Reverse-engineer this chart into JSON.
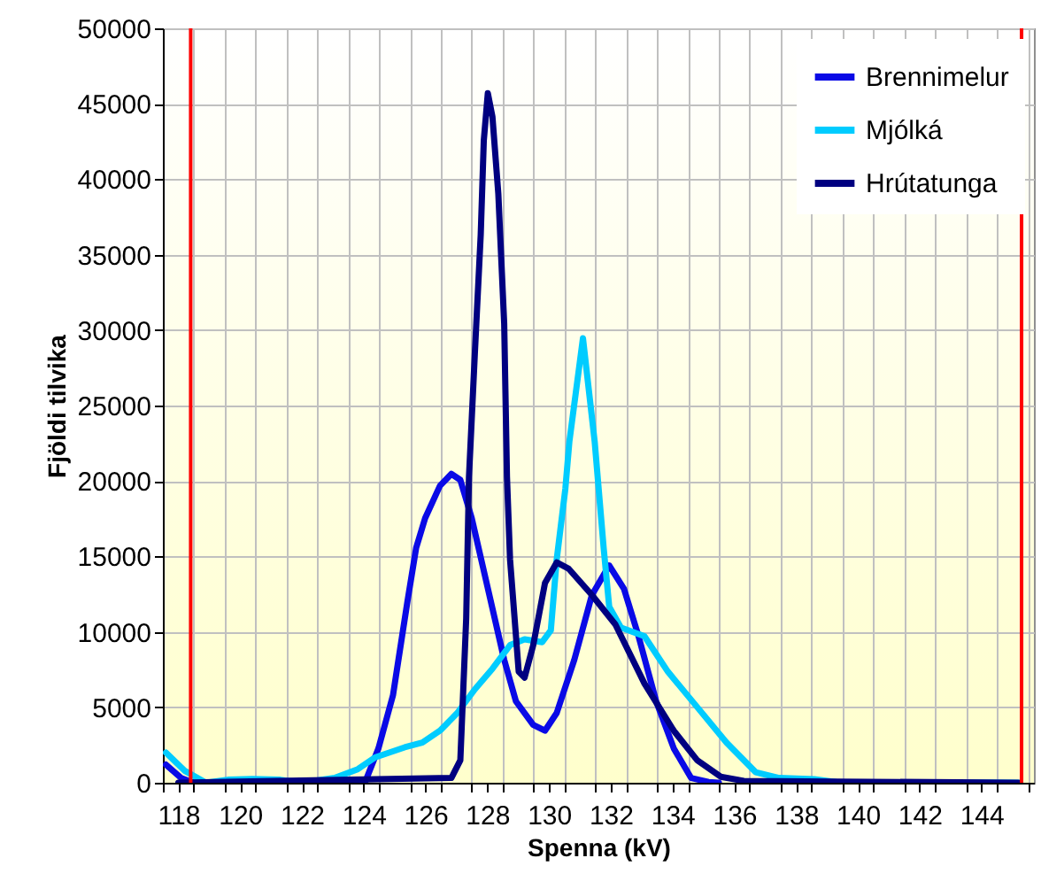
{
  "chart_data": {
    "type": "line",
    "xlabel": "Spenna (kV)",
    "ylabel": "Fjöldi tilvika",
    "xlim": [
      117.5,
      145.7
    ],
    "xticks": [
      {
        "value": 117.5,
        "label": null
      },
      118,
      {
        "value": 118.5,
        "label": null
      },
      {
        "value": 119.5,
        "label": null
      },
      120,
      {
        "value": 120.5,
        "label": null
      },
      {
        "value": 121.5,
        "label": null
      },
      122,
      {
        "value": 122.5,
        "label": null
      },
      {
        "value": 123.5,
        "label": null
      },
      124,
      {
        "value": 124.5,
        "label": null
      },
      {
        "value": 125.5,
        "label": null
      },
      126,
      {
        "value": 126.5,
        "label": null
      },
      {
        "value": 127.5,
        "label": null
      },
      128,
      {
        "value": 128.5,
        "label": null
      },
      {
        "value": 129.5,
        "label": null
      },
      130,
      {
        "value": 130.5,
        "label": null
      },
      {
        "value": 131.5,
        "label": null
      },
      132,
      {
        "value": 132.5,
        "label": null
      },
      {
        "value": 133.5,
        "label": null
      },
      134,
      {
        "value": 134.5,
        "label": null
      },
      {
        "value": 135.5,
        "label": null
      },
      136,
      {
        "value": 136.5,
        "label": null
      },
      {
        "value": 137.5,
        "label": null
      },
      138,
      {
        "value": 138.5,
        "label": null
      },
      {
        "value": 139.5,
        "label": null
      },
      140,
      {
        "value": 140.5,
        "label": null
      },
      {
        "value": 141.5,
        "label": null
      },
      142,
      {
        "value": 142.5,
        "label": null
      },
      {
        "value": 143.5,
        "label": null
      },
      144,
      {
        "value": 144.5,
        "label": null
      },
      {
        "value": 145.5,
        "label": null
      }
    ],
    "ylim": [
      0,
      50000
    ],
    "yticks": [
      0,
      5000,
      10000,
      15000,
      20000,
      25000,
      30000,
      35000,
      40000,
      45000,
      50000
    ],
    "grid": true,
    "legend": "top right",
    "line_style": "solid",
    "ref_lines": [
      {
        "axis": "x",
        "value": 118.4,
        "color": "#ff0000"
      },
      {
        "axis": "x",
        "value": 145.3,
        "color": "#ff0000"
      }
    ],
    "series": [
      {
        "name": "Brennimelur",
        "color": "#0a0ae6",
        "x": [
          117.6,
          118.1,
          118.5,
          124.04,
          124.48,
          124.95,
          125.42,
          125.7,
          125.99,
          126.47,
          126.84,
          127.13,
          127.5,
          128.07,
          128.55,
          128.93,
          129.49,
          129.87,
          130.25,
          130.82,
          131.39,
          131.95,
          132.43,
          132.9,
          133.47,
          134.04,
          134.6,
          135.17,
          135.5
        ],
        "values": [
          1200,
          300,
          0,
          0,
          2280,
          5800,
          12050,
          15570,
          17530,
          19680,
          20470,
          20070,
          17530,
          12440,
          8150,
          5400,
          3840,
          3450,
          4620,
          8150,
          12440,
          14400,
          12840,
          9710,
          5400,
          2280,
          320,
          50,
          0
        ]
      },
      {
        "name": "Mjólká",
        "color": "#00ccff",
        "x": [
          117.6,
          118.2,
          118.9,
          119.6,
          120.4,
          121.3,
          122,
          123.06,
          123.81,
          124.38,
          125.33,
          125.9,
          126.47,
          127.03,
          127.6,
          128.17,
          128.74,
          129.21,
          129.78,
          130.06,
          130.25,
          130.53,
          130.66,
          131.1,
          131.48,
          131.77,
          131.95,
          132.33,
          133.09,
          133.85,
          134.8,
          135.75,
          136.69,
          137.45,
          138.59,
          139.3,
          145.2
        ],
        "values": [
          2000,
          800,
          0,
          200,
          250,
          200,
          0,
          320,
          900,
          1690,
          2350,
          2660,
          3450,
          4620,
          6190,
          7560,
          9120,
          9510,
          9320,
          10100,
          14790,
          19480,
          22600,
          29460,
          22600,
          15570,
          11670,
          10290,
          9710,
          7360,
          5010,
          2660,
          700,
          320,
          230,
          50,
          0
        ]
      },
      {
        "name": "Hrútatunga",
        "color": "#000080",
        "x": [
          118,
          126.84,
          127.13,
          127.32,
          127.41,
          127.6,
          127.79,
          127.89,
          128.02,
          128.17,
          128.36,
          128.55,
          128.64,
          128.74,
          129.02,
          129.21,
          129.49,
          129.87,
          130.25,
          130.63,
          131.39,
          132.15,
          133.09,
          134.04,
          134.8,
          135.56,
          136.31,
          145.2
        ],
        "values": [
          0,
          320,
          1490,
          10880,
          20270,
          28460,
          36310,
          42570,
          45700,
          44130,
          39040,
          30440,
          20270,
          14790,
          7360,
          6970,
          9120,
          13230,
          14600,
          14200,
          12440,
          10490,
          6580,
          3450,
          1490,
          400,
          120,
          0
        ]
      }
    ]
  }
}
